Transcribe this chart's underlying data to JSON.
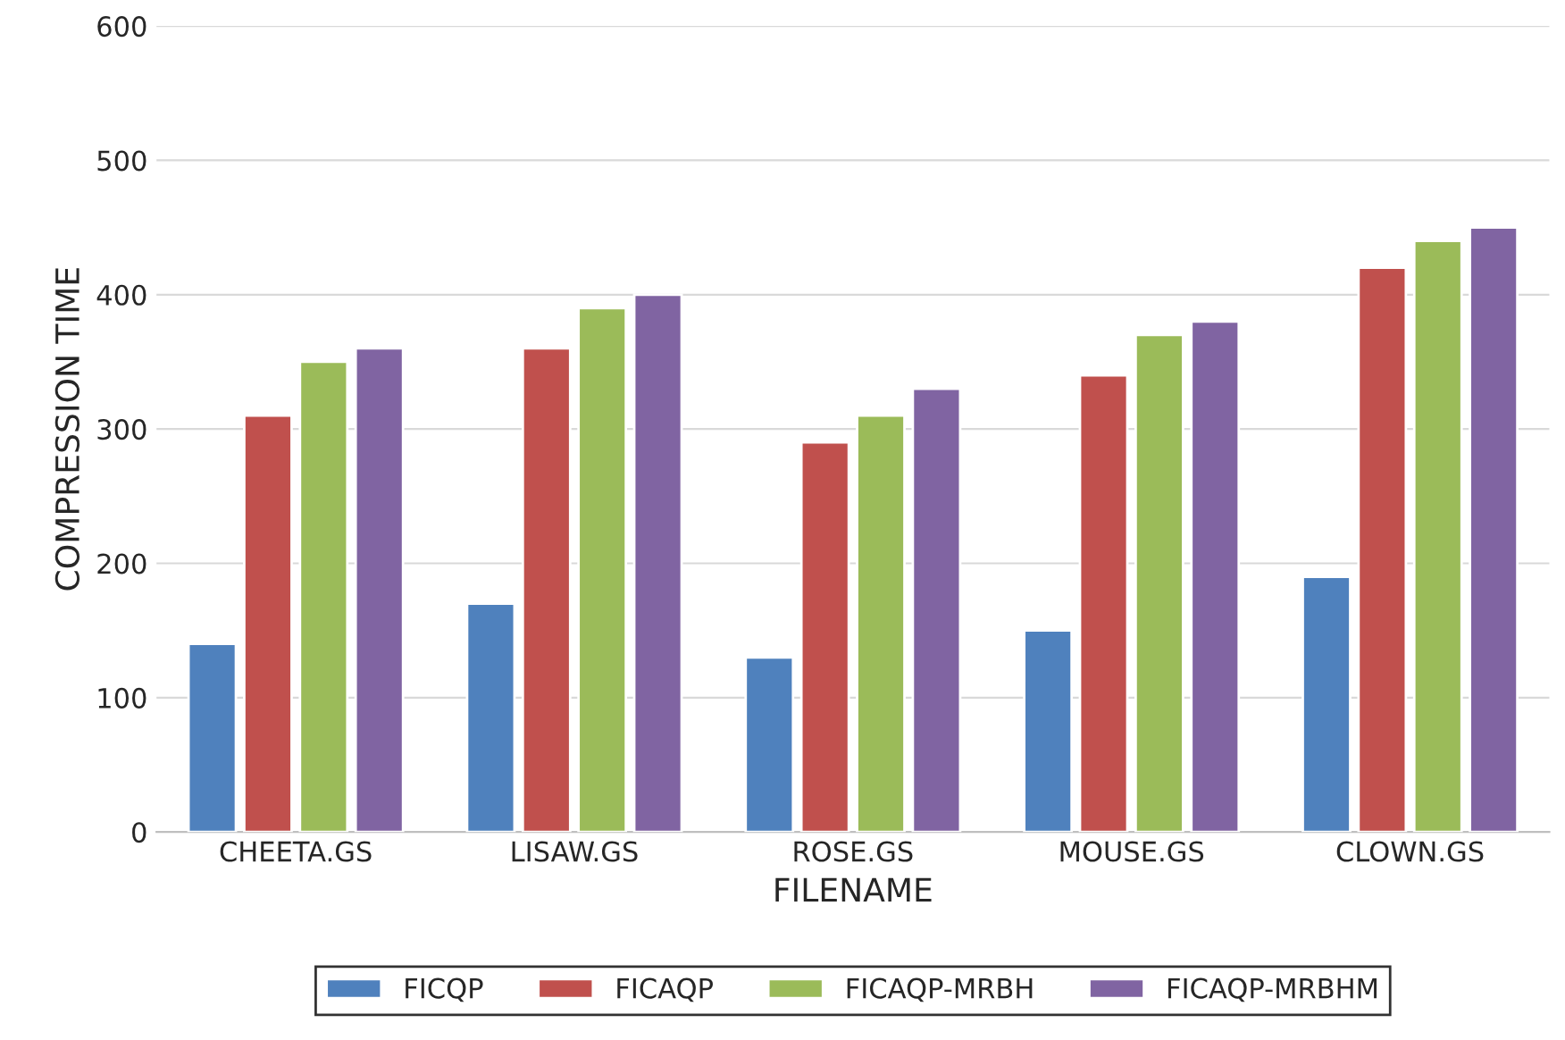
{
  "chart_data": {
    "type": "bar",
    "xlabel": "FILENAME",
    "ylabel": "COMPRESSION TIME",
    "categories": [
      "CHEETA.GS",
      "LISAW.GS",
      "ROSE.GS",
      "MOUSE.GS",
      "CLOWN.GS"
    ],
    "series": [
      {
        "name": "FICQP",
        "color": "#4f81bd",
        "values": [
          140,
          170,
          130,
          150,
          190
        ]
      },
      {
        "name": "FICAQP",
        "color": "#c0504d",
        "values": [
          310,
          360,
          290,
          340,
          420
        ]
      },
      {
        "name": "FICAQP-MRBH",
        "color": "#9bbb59",
        "values": [
          350,
          390,
          310,
          370,
          440
        ]
      },
      {
        "name": "FICAQP-MRBHM",
        "color": "#8064a2",
        "values": [
          360,
          400,
          330,
          380,
          450
        ]
      }
    ],
    "ylim": [
      0,
      600
    ],
    "yticks": [
      0,
      100,
      200,
      300,
      400,
      500,
      600
    ],
    "grid": "y",
    "legend": "bottom"
  }
}
